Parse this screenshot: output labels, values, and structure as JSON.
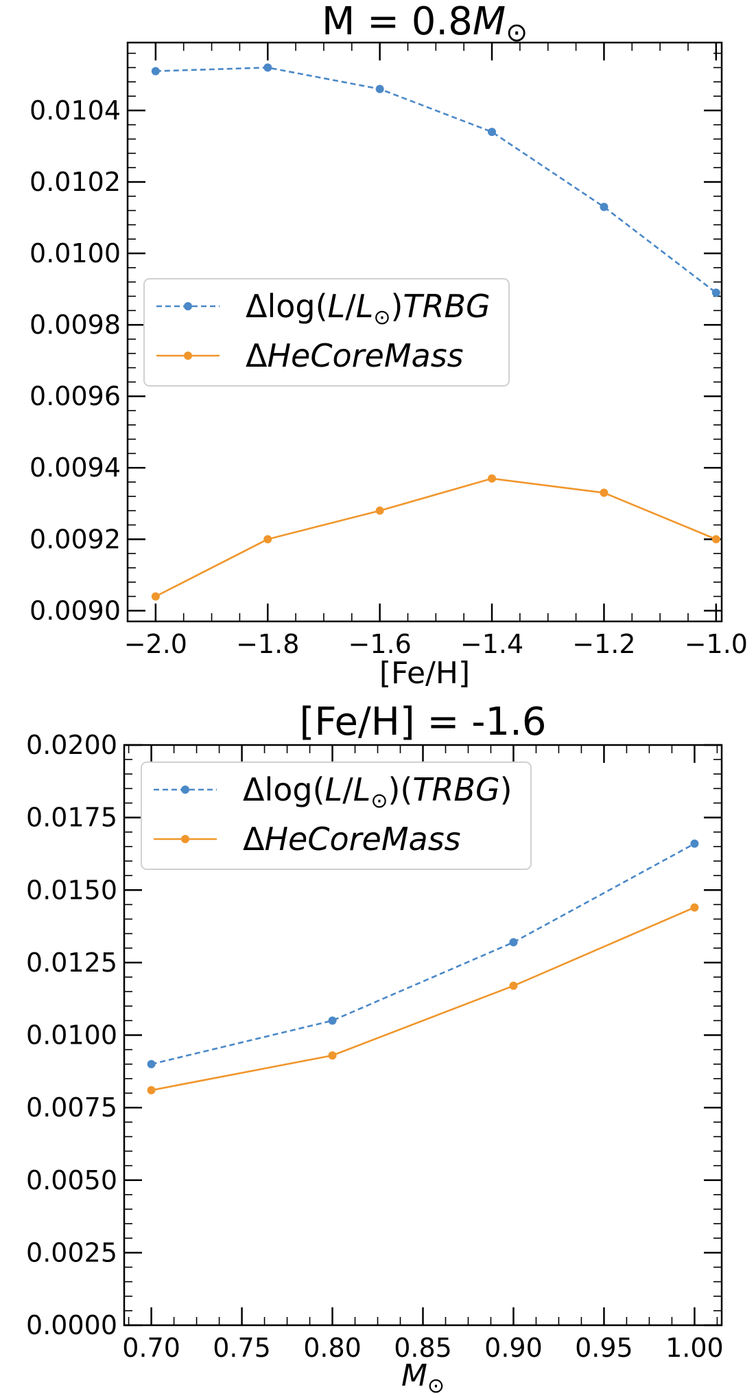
{
  "colors": {
    "blue": "#4a88c7",
    "orange": "#f0962c"
  },
  "chart_data": [
    {
      "type": "line",
      "title": "M = 0.8M⊙",
      "title_prefix": "M = 0.8",
      "title_var": "M",
      "title_sub": "⊙",
      "xlabel": "[Fe/H]",
      "ylabel": "",
      "xlim": [
        -2.05,
        -0.99
      ],
      "ylim": [
        0.00897,
        0.01059
      ],
      "xticks": [
        -2.0,
        -1.8,
        -1.6,
        -1.4,
        -1.2,
        -1.0
      ],
      "xtick_labels": [
        "−2.0",
        "−1.8",
        "−1.6",
        "−1.4",
        "−1.2",
        "−1.0"
      ],
      "yticks": [
        0.009,
        0.0092,
        0.0094,
        0.0096,
        0.0098,
        0.01,
        0.0102,
        0.0104
      ],
      "ytick_labels": [
        "0.0090",
        "0.0092",
        "0.0094",
        "0.0096",
        "0.0098",
        "0.0100",
        "0.0102",
        "0.0104"
      ],
      "legend_position": "center-left",
      "x": [
        -2.0,
        -1.8,
        -1.6,
        -1.4,
        -1.2,
        -1.0
      ],
      "series": [
        {
          "name": "Δlog(L/L⊙)TRBG",
          "legend_parts": [
            "Δlog(",
            "L",
            "/",
            "L",
            "⊙",
            ")",
            "TRBG",
            ""
          ],
          "values": [
            0.01051,
            0.01052,
            0.01046,
            0.01034,
            0.01013,
            0.00989
          ],
          "color": "#4a88c7",
          "style": "dashed"
        },
        {
          "name": "ΔHeCoreMass",
          "legend_parts": [
            "Δ",
            "HeCoreMass"
          ],
          "values": [
            0.00904,
            0.0092,
            0.00928,
            0.00937,
            0.00933,
            0.0092
          ],
          "color": "#f0962c",
          "style": "solid"
        }
      ]
    },
    {
      "type": "line",
      "title": "[Fe/H] = -1.6",
      "xlabel": "M⊙",
      "xlabel_var": "M",
      "xlabel_sub": "⊙",
      "ylabel": "",
      "xlim": [
        0.685,
        1.015
      ],
      "ylim": [
        0.0,
        0.02
      ],
      "xticks": [
        0.7,
        0.75,
        0.8,
        0.85,
        0.9,
        0.95,
        1.0
      ],
      "xtick_labels": [
        "0.70",
        "0.75",
        "0.80",
        "0.85",
        "0.90",
        "0.95",
        "1.00"
      ],
      "yticks": [
        0.0,
        0.0025,
        0.005,
        0.0075,
        0.01,
        0.0125,
        0.015,
        0.0175,
        0.02
      ],
      "ytick_labels": [
        "0.0000",
        "0.0025",
        "0.0050",
        "0.0075",
        "0.0100",
        "0.0125",
        "0.0150",
        "0.0175",
        "0.0200"
      ],
      "legend_position": "top-left",
      "x": [
        0.7,
        0.8,
        0.9,
        1.0
      ],
      "series": [
        {
          "name": "Δlog(L/L⊙)(TRBG)",
          "legend_parts": [
            "Δlog(",
            "L",
            "/",
            "L",
            "⊙",
            ")(",
            "TRBG",
            ")"
          ],
          "values": [
            0.009,
            0.0105,
            0.0132,
            0.0166
          ],
          "color": "#4a88c7",
          "style": "dashed"
        },
        {
          "name": "ΔHeCoreMass",
          "legend_parts": [
            "Δ",
            "HeCoreMass"
          ],
          "values": [
            0.0081,
            0.0093,
            0.0117,
            0.0144
          ],
          "color": "#f0962c",
          "style": "solid"
        }
      ]
    }
  ]
}
